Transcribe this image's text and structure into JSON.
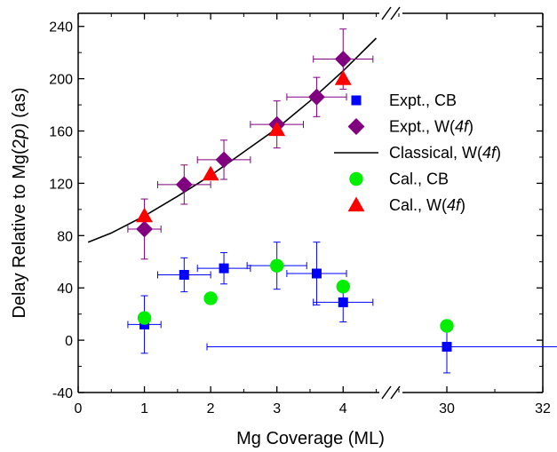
{
  "chart_data": {
    "type": "scatter",
    "xlabel": "Mg Coverage (ML)",
    "ylabel_parts": [
      "Delay Relative to Mg(2",
      "p",
      ") (as)"
    ],
    "xlim": [
      0,
      4.6
    ],
    "xlim_right": [
      29,
      32
    ],
    "ylim": [
      -40,
      250
    ],
    "x_ticks": [
      0,
      1,
      2,
      3,
      4
    ],
    "x_ticks_right": [
      30,
      32
    ],
    "y_ticks": [
      -40,
      0,
      40,
      80,
      120,
      160,
      200,
      240
    ],
    "axis_break": true,
    "legend_position": "right",
    "series": [
      {
        "name": "Expt., CB",
        "marker": "square",
        "color": "#0000ff",
        "points": [
          {
            "x": 1.0,
            "y": 12,
            "xerr": 0.25,
            "yerr": 22
          },
          {
            "x": 1.6,
            "y": 50,
            "xerr": 0.4,
            "yerr": 13
          },
          {
            "x": 2.2,
            "y": 55,
            "xerr": 0.4,
            "yerr": 12
          },
          {
            "x": 3.0,
            "y": 57,
            "xerr": 0.45,
            "yerr": 18
          },
          {
            "x": 3.6,
            "y": 51,
            "xerr": 0.45,
            "yerr": 24
          },
          {
            "x": 4.0,
            "y": 29,
            "xerr": 0.45,
            "yerr": 15
          },
          {
            "x": 30.0,
            "y": -5,
            "xerr": 5,
            "yerr": 20
          }
        ]
      },
      {
        "name": "Expt., W(4f)",
        "label_parts": [
          "Expt., W(",
          "4f",
          ")"
        ],
        "marker": "diamond",
        "color": "#800080",
        "points": [
          {
            "x": 1.0,
            "y": 85,
            "xerr": 0.25,
            "yerr": 23
          },
          {
            "x": 1.6,
            "y": 119,
            "xerr": 0.4,
            "yerr": 15
          },
          {
            "x": 2.2,
            "y": 138,
            "xerr": 0.4,
            "yerr": 15
          },
          {
            "x": 3.0,
            "y": 165,
            "xerr": 0.4,
            "yerr": 18
          },
          {
            "x": 3.6,
            "y": 186,
            "xerr": 0.45,
            "yerr": 15
          },
          {
            "x": 4.0,
            "y": 215,
            "xerr": 0.45,
            "yerr": 23
          }
        ]
      },
      {
        "name": "Classical, W(4f)",
        "label_parts": [
          "Classical, W(",
          "4f",
          ")"
        ],
        "marker": "line",
        "color": "#000000",
        "x": [
          0.15,
          0.5,
          1.0,
          1.5,
          2.0,
          2.5,
          3.0,
          3.5,
          4.0,
          4.5
        ],
        "y": [
          75,
          82,
          95,
          110,
          126,
          144,
          162,
          183,
          206,
          231
        ]
      },
      {
        "name": "Cal., CB",
        "marker": "circle",
        "color": "#00ee00",
        "points": [
          {
            "x": 1.0,
            "y": 17
          },
          {
            "x": 2.0,
            "y": 32
          },
          {
            "x": 3.0,
            "y": 57
          },
          {
            "x": 4.0,
            "y": 41
          },
          {
            "x": 30.0,
            "y": 11
          }
        ]
      },
      {
        "name": "Cal., W(4f)",
        "label_parts": [
          "Cal., W(",
          "4f",
          ")"
        ],
        "marker": "triangle",
        "color": "#ff0000",
        "points": [
          {
            "x": 1.0,
            "y": 95
          },
          {
            "x": 2.0,
            "y": 127
          },
          {
            "x": 3.0,
            "y": 161
          },
          {
            "x": 4.0,
            "y": 200
          }
        ]
      }
    ]
  }
}
